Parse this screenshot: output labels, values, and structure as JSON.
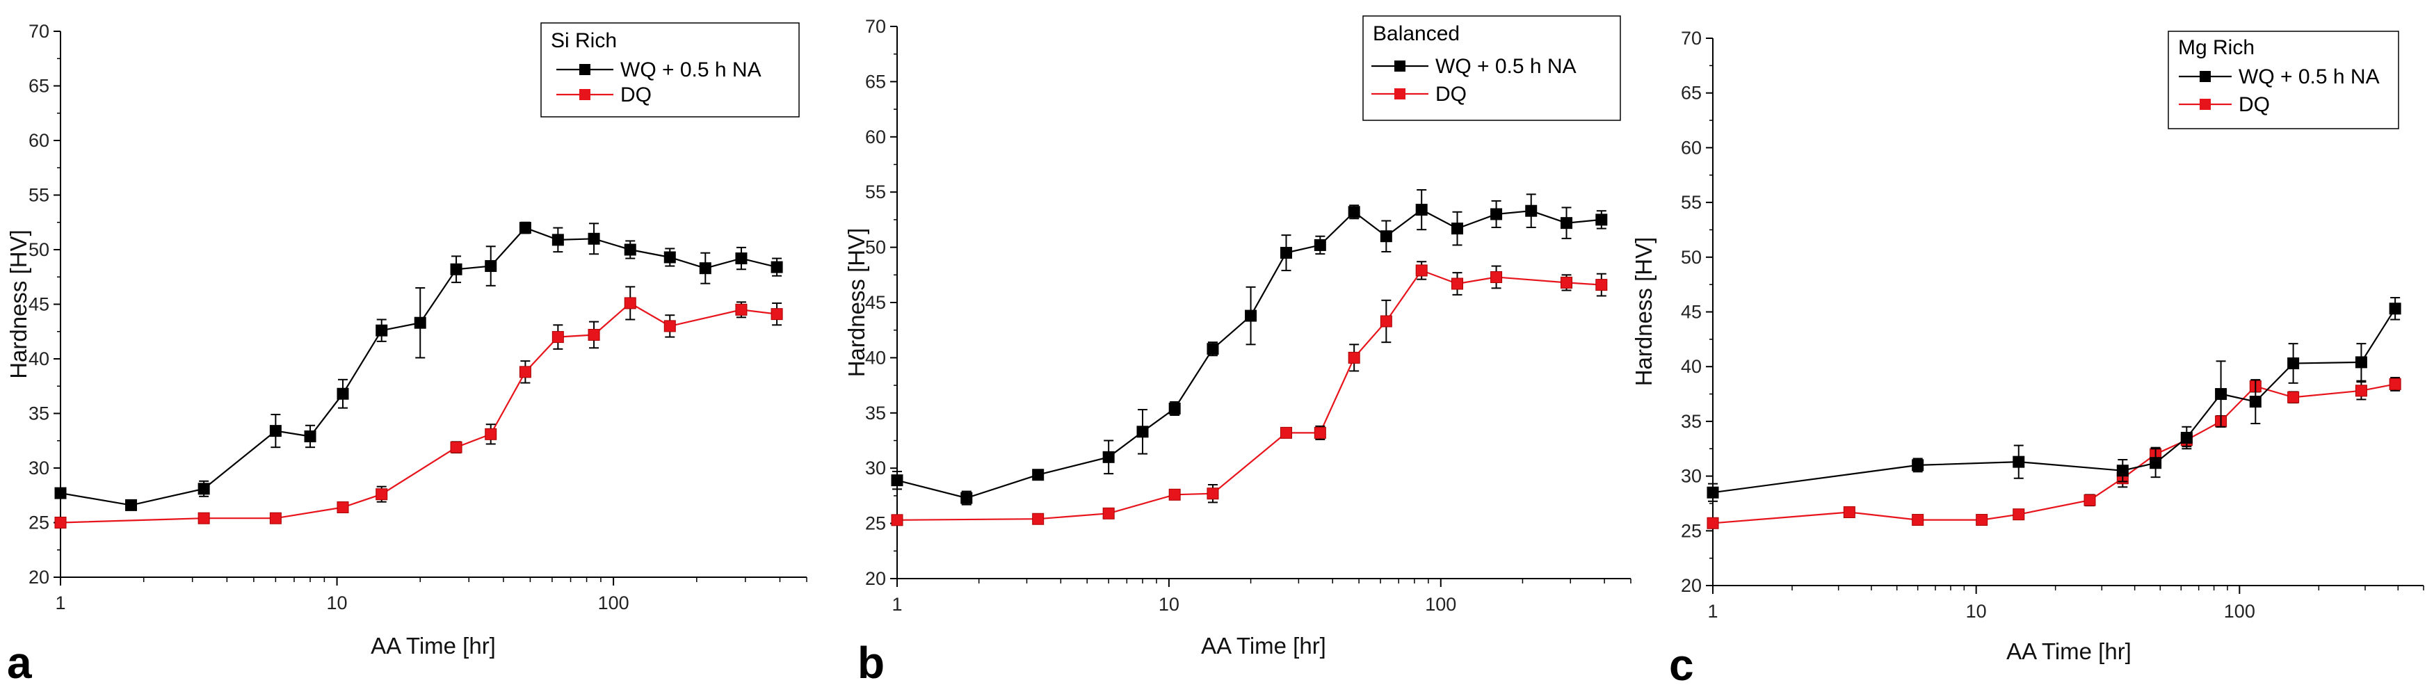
{
  "chart_data": [
    {
      "type": "line",
      "panel_label": "a",
      "legend_title": "Si Rich",
      "xlabel": "AA Time [hr]",
      "ylabel": "Hardness [HV]",
      "xscale": "log",
      "xlim": [
        1,
        500
      ],
      "ylim": [
        20,
        70
      ],
      "xticks": [
        {
          "v": 1,
          "label": "1"
        },
        {
          "v": 10,
          "label": "10"
        },
        {
          "v": 100,
          "label": "100"
        }
      ],
      "yticks": [
        20,
        25,
        30,
        35,
        40,
        45,
        50,
        55,
        60,
        65,
        70
      ],
      "series": [
        {
          "name": "WQ + 0.5 h NA",
          "color": "#000000",
          "points": [
            {
              "x": 1,
              "y": 27.7,
              "err": 0.3
            },
            {
              "x": 1.8,
              "y": 26.6,
              "err": 0.3
            },
            {
              "x": 3.3,
              "y": 28.1,
              "err": 0.7
            },
            {
              "x": 6,
              "y": 33.4,
              "err": 1.5
            },
            {
              "x": 8,
              "y": 32.9,
              "err": 1.0
            },
            {
              "x": 10.5,
              "y": 36.8,
              "err": 1.3
            },
            {
              "x": 14.5,
              "y": 42.6,
              "err": 1.0
            },
            {
              "x": 20,
              "y": 43.3,
              "err": 3.2
            },
            {
              "x": 27,
              "y": 48.2,
              "err": 1.2
            },
            {
              "x": 36,
              "y": 48.5,
              "err": 1.8
            },
            {
              "x": 48,
              "y": 52.0,
              "err": 0.5
            },
            {
              "x": 63,
              "y": 50.9,
              "err": 1.1
            },
            {
              "x": 85,
              "y": 51.0,
              "err": 1.4
            },
            {
              "x": 115,
              "y": 50.0,
              "err": 0.8
            },
            {
              "x": 160,
              "y": 49.3,
              "err": 0.8
            },
            {
              "x": 215,
              "y": 48.3,
              "err": 1.4
            },
            {
              "x": 290,
              "y": 49.2,
              "err": 1.0
            },
            {
              "x": 390,
              "y": 48.4,
              "err": 0.8
            }
          ]
        },
        {
          "name": "DQ",
          "color": "#e8141c",
          "points": [
            {
              "x": 1,
              "y": 25.0,
              "err": 0.2
            },
            {
              "x": 3.3,
              "y": 25.4,
              "err": 0.2
            },
            {
              "x": 6,
              "y": 25.4,
              "err": 0.2
            },
            {
              "x": 10.5,
              "y": 26.4,
              "err": 0.3
            },
            {
              "x": 14.5,
              "y": 27.6,
              "err": 0.7
            },
            {
              "x": 27,
              "y": 31.9,
              "err": 0.5
            },
            {
              "x": 36,
              "y": 33.1,
              "err": 0.9
            },
            {
              "x": 48,
              "y": 38.8,
              "err": 1.0
            },
            {
              "x": 63,
              "y": 42.0,
              "err": 1.1
            },
            {
              "x": 85,
              "y": 42.2,
              "err": 1.2
            },
            {
              "x": 115,
              "y": 45.1,
              "err": 1.5
            },
            {
              "x": 160,
              "y": 43.0,
              "err": 1.0
            },
            {
              "x": 290,
              "y": 44.5,
              "err": 0.7
            },
            {
              "x": 390,
              "y": 44.1,
              "err": 1.0
            }
          ]
        }
      ]
    },
    {
      "type": "line",
      "panel_label": "b",
      "legend_title": "Balanced",
      "xlabel": "AA Time [hr]",
      "ylabel": "Hardness [HV]",
      "xscale": "log",
      "xlim": [
        1,
        500
      ],
      "ylim": [
        20,
        70
      ],
      "xticks": [
        {
          "v": 1,
          "label": "1"
        },
        {
          "v": 10,
          "label": "10"
        },
        {
          "v": 100,
          "label": "100"
        }
      ],
      "yticks": [
        20,
        25,
        30,
        35,
        40,
        45,
        50,
        55,
        60,
        65,
        70
      ],
      "series": [
        {
          "name": "WQ + 0.5 h NA",
          "color": "#000000",
          "points": [
            {
              "x": 1,
              "y": 28.9,
              "err": 0.8
            },
            {
              "x": 1.8,
              "y": 27.3,
              "err": 0.6
            },
            {
              "x": 3.3,
              "y": 29.4,
              "err": 0.4
            },
            {
              "x": 6,
              "y": 31.0,
              "err": 1.5
            },
            {
              "x": 8,
              "y": 33.3,
              "err": 2.0
            },
            {
              "x": 10.5,
              "y": 35.4,
              "err": 0.6
            },
            {
              "x": 14.5,
              "y": 40.8,
              "err": 0.6
            },
            {
              "x": 20,
              "y": 43.8,
              "err": 2.6
            },
            {
              "x": 27,
              "y": 49.5,
              "err": 1.6
            },
            {
              "x": 36,
              "y": 50.2,
              "err": 0.8
            },
            {
              "x": 48,
              "y": 53.2,
              "err": 0.6
            },
            {
              "x": 63,
              "y": 51.0,
              "err": 1.4
            },
            {
              "x": 85,
              "y": 53.4,
              "err": 1.8
            },
            {
              "x": 115,
              "y": 51.7,
              "err": 1.5
            },
            {
              "x": 160,
              "y": 53.0,
              "err": 1.2
            },
            {
              "x": 215,
              "y": 53.3,
              "err": 1.5
            },
            {
              "x": 290,
              "y": 52.2,
              "err": 1.4
            },
            {
              "x": 390,
              "y": 52.5,
              "err": 0.8
            }
          ]
        },
        {
          "name": "DQ",
          "color": "#e8141c",
          "points": [
            {
              "x": 1,
              "y": 25.3,
              "err": 0.2
            },
            {
              "x": 3.3,
              "y": 25.4,
              "err": 0.2
            },
            {
              "x": 6,
              "y": 25.9,
              "err": 0.2
            },
            {
              "x": 10.5,
              "y": 27.6,
              "err": 0.3
            },
            {
              "x": 14.5,
              "y": 27.7,
              "err": 0.8
            },
            {
              "x": 27,
              "y": 33.2,
              "err": 0.3
            },
            {
              "x": 36,
              "y": 33.2,
              "err": 0.6
            },
            {
              "x": 48,
              "y": 40.0,
              "err": 1.2
            },
            {
              "x": 63,
              "y": 43.3,
              "err": 1.9
            },
            {
              "x": 85,
              "y": 47.9,
              "err": 0.8
            },
            {
              "x": 115,
              "y": 46.7,
              "err": 1.0
            },
            {
              "x": 160,
              "y": 47.3,
              "err": 1.0
            },
            {
              "x": 290,
              "y": 46.8,
              "err": 0.7
            },
            {
              "x": 390,
              "y": 46.6,
              "err": 1.0
            }
          ]
        }
      ]
    },
    {
      "type": "line",
      "panel_label": "c",
      "legend_title": "Mg Rich",
      "xlabel": "AA Time [hr]",
      "ylabel": "Hardness [HV]",
      "xscale": "log",
      "xlim": [
        1,
        500
      ],
      "ylim": [
        20,
        70
      ],
      "xticks": [
        {
          "v": 1,
          "label": "1"
        },
        {
          "v": 10,
          "label": "10"
        },
        {
          "v": 100,
          "label": "100"
        }
      ],
      "yticks": [
        20,
        25,
        30,
        35,
        40,
        45,
        50,
        55,
        60,
        65,
        70
      ],
      "series": [
        {
          "name": "WQ + 0.5 h NA",
          "color": "#000000",
          "points": [
            {
              "x": 1,
              "y": 28.5,
              "err": 0.8
            },
            {
              "x": 6,
              "y": 31.0,
              "err": 0.6
            },
            {
              "x": 14.5,
              "y": 31.3,
              "err": 1.5
            },
            {
              "x": 36,
              "y": 30.5,
              "err": 1.0
            },
            {
              "x": 48,
              "y": 31.2,
              "err": 1.3
            },
            {
              "x": 63,
              "y": 33.5,
              "err": 1.0
            },
            {
              "x": 85,
              "y": 37.5,
              "err": 3.0
            },
            {
              "x": 115,
              "y": 36.8,
              "err": 2.0
            },
            {
              "x": 160,
              "y": 40.3,
              "err": 1.8
            },
            {
              "x": 290,
              "y": 40.4,
              "err": 1.7
            },
            {
              "x": 390,
              "y": 45.3,
              "err": 1.0
            }
          ]
        },
        {
          "name": "DQ",
          "color": "#e8141c",
          "points": [
            {
              "x": 1,
              "y": 25.7,
              "err": 0.3
            },
            {
              "x": 3.3,
              "y": 26.7,
              "err": 0.2
            },
            {
              "x": 6,
              "y": 26.0,
              "err": 0.2
            },
            {
              "x": 10.5,
              "y": 26.0,
              "err": 0.2
            },
            {
              "x": 14.5,
              "y": 26.5,
              "err": 0.2
            },
            {
              "x": 27,
              "y": 27.8,
              "err": 0.5
            },
            {
              "x": 36,
              "y": 29.8,
              "err": 0.8
            },
            {
              "x": 48,
              "y": 32.0,
              "err": 0.6
            },
            {
              "x": 63,
              "y": 33.3,
              "err": 0.6
            },
            {
              "x": 85,
              "y": 35.0,
              "err": 0.5
            },
            {
              "x": 115,
              "y": 38.2,
              "err": 0.5
            },
            {
              "x": 160,
              "y": 37.2,
              "err": 0.5
            },
            {
              "x": 290,
              "y": 37.8,
              "err": 0.8
            },
            {
              "x": 390,
              "y": 38.4,
              "err": 0.6
            }
          ]
        }
      ]
    }
  ]
}
